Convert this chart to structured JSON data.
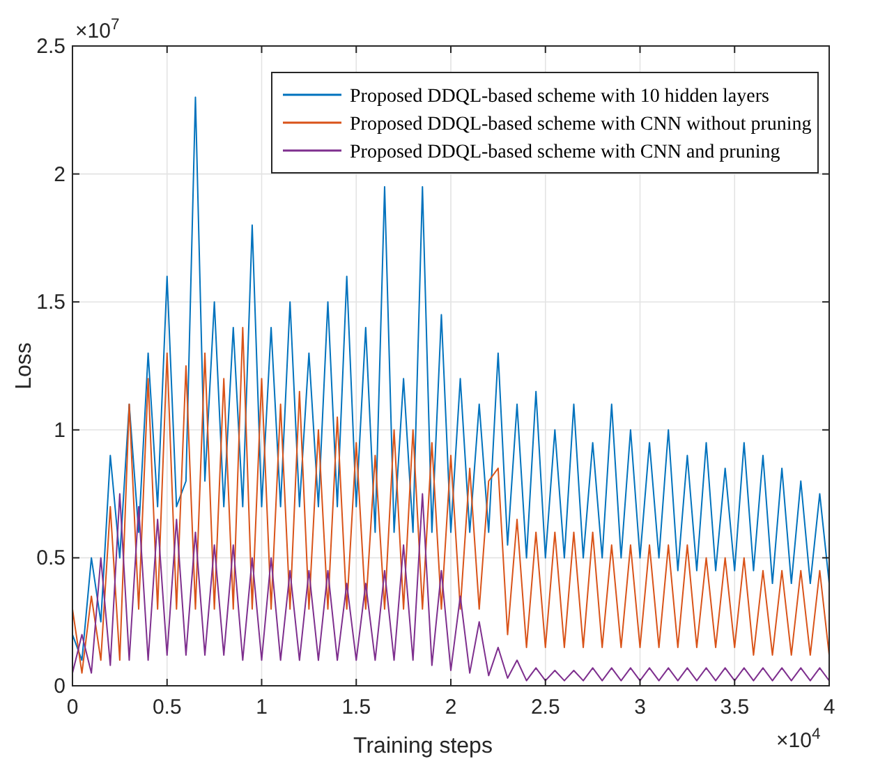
{
  "chart_data": {
    "type": "line",
    "xlabel": "Training steps",
    "ylabel": "Loss",
    "annotations": [
      "×10$^{7}$",
      "×10$^{4}$"
    ],
    "x": [
      0,
      0.05,
      0.1,
      0.15,
      0.2,
      0.25,
      0.3,
      0.35,
      0.4,
      0.45,
      0.5,
      0.55,
      0.6,
      0.65,
      0.7,
      0.75,
      0.8,
      0.85,
      0.9,
      0.95,
      1,
      1.05,
      1.1,
      1.15,
      1.2,
      1.25,
      1.3,
      1.35,
      1.4,
      1.45,
      1.5,
      1.55,
      1.6,
      1.65,
      1.7,
      1.75,
      1.8,
      1.85,
      1.9,
      1.95,
      2,
      2.05,
      2.1,
      2.15,
      2.2,
      2.25,
      2.3,
      2.35,
      2.4,
      2.45,
      2.5,
      2.55,
      2.6,
      2.65,
      2.7,
      2.75,
      2.8,
      2.85,
      2.9,
      2.95,
      3,
      3.05,
      3.1,
      3.15,
      3.2,
      3.25,
      3.3,
      3.35,
      3.4,
      3.45,
      3.5,
      3.55,
      3.6,
      3.65,
      3.7,
      3.75,
      3.8,
      3.85,
      3.9,
      3.95,
      4
    ],
    "series": [
      {
        "name": "Proposed DDQL-based scheme with 10 hidden layers",
        "color": "#0072bd",
        "values": [
          0.2,
          0.1,
          0.5,
          0.25,
          0.9,
          0.5,
          1.1,
          0.6,
          1.3,
          0.7,
          1.6,
          0.7,
          0.8,
          2.3,
          0.8,
          1.5,
          0.7,
          1.4,
          0.7,
          1.8,
          0.7,
          1.4,
          0.7,
          1.5,
          0.7,
          1.3,
          0.7,
          1.5,
          0.7,
          1.6,
          0.7,
          1.4,
          0.6,
          1.95,
          0.6,
          1.2,
          0.6,
          1.95,
          0.6,
          1.45,
          0.6,
          1.2,
          0.6,
          1.1,
          0.6,
          1.3,
          0.55,
          1.1,
          0.5,
          1.15,
          0.5,
          1.0,
          0.5,
          1.1,
          0.5,
          0.95,
          0.5,
          1.1,
          0.5,
          1.0,
          0.5,
          0.95,
          0.5,
          1.0,
          0.45,
          0.9,
          0.45,
          0.95,
          0.45,
          0.85,
          0.45,
          0.95,
          0.45,
          0.9,
          0.4,
          0.85,
          0.4,
          0.8,
          0.4,
          0.75,
          0.4
        ]
      },
      {
        "name": "Proposed DDQL-based scheme with CNN without pruning",
        "color": "#d95319",
        "values": [
          0.3,
          0.05,
          0.35,
          0.1,
          0.7,
          0.1,
          1.1,
          0.3,
          1.2,
          0.3,
          1.3,
          0.3,
          1.25,
          0.3,
          1.3,
          0.3,
          1.2,
          0.3,
          1.4,
          0.3,
          1.2,
          0.3,
          1.1,
          0.3,
          1.15,
          0.3,
          1.0,
          0.3,
          1.05,
          0.3,
          0.95,
          0.3,
          0.9,
          0.3,
          1.0,
          0.3,
          1.0,
          0.3,
          0.95,
          0.3,
          0.9,
          0.3,
          0.85,
          0.3,
          0.8,
          0.85,
          0.2,
          0.65,
          0.15,
          0.6,
          0.15,
          0.6,
          0.15,
          0.6,
          0.15,
          0.6,
          0.15,
          0.55,
          0.15,
          0.55,
          0.15,
          0.55,
          0.15,
          0.55,
          0.15,
          0.55,
          0.15,
          0.5,
          0.15,
          0.5,
          0.15,
          0.5,
          0.12,
          0.45,
          0.12,
          0.45,
          0.12,
          0.45,
          0.12,
          0.45,
          0.12
        ]
      },
      {
        "name": "Proposed DDQL-based scheme with CNN and pruning",
        "color": "#7e2f8e",
        "values": [
          0.05,
          0.2,
          0.05,
          0.5,
          0.08,
          0.75,
          0.1,
          0.7,
          0.1,
          0.65,
          0.12,
          0.65,
          0.12,
          0.6,
          0.12,
          0.55,
          0.12,
          0.55,
          0.1,
          0.5,
          0.1,
          0.5,
          0.1,
          0.45,
          0.1,
          0.45,
          0.1,
          0.45,
          0.1,
          0.4,
          0.1,
          0.4,
          0.1,
          0.45,
          0.1,
          0.55,
          0.1,
          0.75,
          0.08,
          0.45,
          0.06,
          0.35,
          0.05,
          0.25,
          0.04,
          0.15,
          0.03,
          0.1,
          0.02,
          0.07,
          0.02,
          0.06,
          0.02,
          0.06,
          0.02,
          0.07,
          0.02,
          0.07,
          0.02,
          0.07,
          0.02,
          0.07,
          0.02,
          0.07,
          0.02,
          0.07,
          0.02,
          0.07,
          0.02,
          0.07,
          0.02,
          0.07,
          0.02,
          0.07,
          0.02,
          0.07,
          0.02,
          0.07,
          0.02,
          0.07,
          0.02
        ]
      }
    ],
    "xlim": [
      0,
      4
    ],
    "xticks": [
      0,
      0.5,
      1,
      1.5,
      2,
      2.5,
      3,
      3.5,
      4
    ],
    "ylim": [
      0,
      2.5
    ],
    "yticks": [
      0,
      0.5,
      1,
      1.5,
      2,
      2.5
    ],
    "grid": true,
    "legend": "top right",
    "marker": "none",
    "line_style": "solid"
  }
}
